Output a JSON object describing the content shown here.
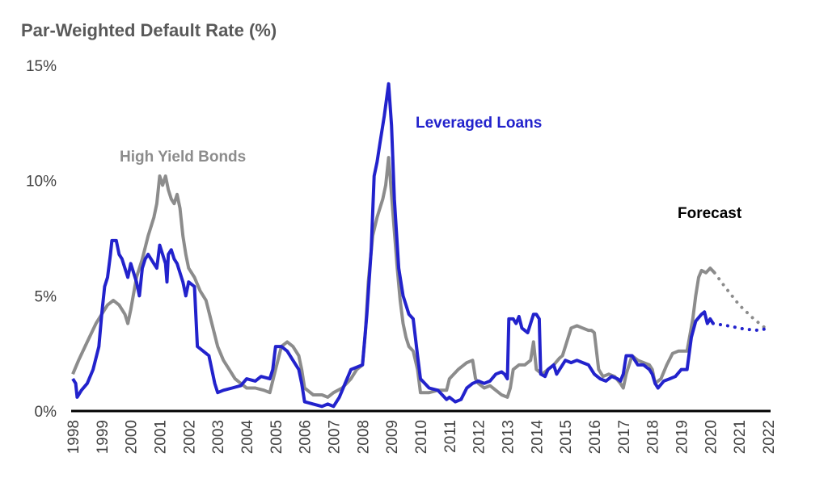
{
  "chart_data": {
    "type": "line",
    "title": "Par-Weighted Default Rate (%)",
    "xlabel": "",
    "ylabel": "",
    "xlim": [
      1998,
      2022
    ],
    "ylim": [
      0,
      15
    ],
    "x_ticks": [
      "1998",
      "1999",
      "2000",
      "2001",
      "2002",
      "2003",
      "2004",
      "2005",
      "2006",
      "2007",
      "2008",
      "2009",
      "2010",
      "2011",
      "2012",
      "2013",
      "2014",
      "2015",
      "2016",
      "2017",
      "2018",
      "2019",
      "2020",
      "2021",
      "2022"
    ],
    "y_ticks": [
      "0%",
      "5%",
      "10%",
      "15%"
    ],
    "y_tick_values": [
      0,
      5,
      10,
      15
    ],
    "annotations": {
      "forecast": "Forecast"
    },
    "series": [
      {
        "name": "High Yield Bonds",
        "color": "#8c8c8c",
        "style": "solid",
        "points": [
          [
            1998.0,
            1.6
          ],
          [
            1998.2,
            2.2
          ],
          [
            1998.5,
            3.0
          ],
          [
            1998.8,
            3.8
          ],
          [
            1999.0,
            4.2
          ],
          [
            1999.2,
            4.6
          ],
          [
            1999.4,
            4.8
          ],
          [
            1999.6,
            4.6
          ],
          [
            1999.8,
            4.2
          ],
          [
            1999.9,
            3.8
          ],
          [
            2000.0,
            4.4
          ],
          [
            2000.2,
            5.8
          ],
          [
            2000.4,
            6.6
          ],
          [
            2000.6,
            7.6
          ],
          [
            2000.8,
            8.4
          ],
          [
            2000.9,
            9.0
          ],
          [
            2001.0,
            10.2
          ],
          [
            2001.1,
            9.8
          ],
          [
            2001.2,
            10.2
          ],
          [
            2001.3,
            9.6
          ],
          [
            2001.4,
            9.2
          ],
          [
            2001.5,
            9.0
          ],
          [
            2001.6,
            9.4
          ],
          [
            2001.7,
            8.8
          ],
          [
            2001.8,
            7.6
          ],
          [
            2001.9,
            6.8
          ],
          [
            2002.0,
            6.2
          ],
          [
            2002.2,
            5.8
          ],
          [
            2002.4,
            5.2
          ],
          [
            2002.6,
            4.8
          ],
          [
            2002.8,
            3.8
          ],
          [
            2003.0,
            2.8
          ],
          [
            2003.2,
            2.2
          ],
          [
            2003.4,
            1.8
          ],
          [
            2003.6,
            1.4
          ],
          [
            2003.8,
            1.2
          ],
          [
            2004.0,
            1.0
          ],
          [
            2004.3,
            1.0
          ],
          [
            2004.6,
            0.9
          ],
          [
            2004.8,
            0.8
          ],
          [
            2005.0,
            1.8
          ],
          [
            2005.2,
            2.8
          ],
          [
            2005.4,
            3.0
          ],
          [
            2005.6,
            2.8
          ],
          [
            2005.8,
            2.4
          ],
          [
            2005.9,
            1.8
          ],
          [
            2006.0,
            1.0
          ],
          [
            2006.3,
            0.7
          ],
          [
            2006.6,
            0.7
          ],
          [
            2006.8,
            0.6
          ],
          [
            2007.0,
            0.8
          ],
          [
            2007.3,
            1.0
          ],
          [
            2007.6,
            1.4
          ],
          [
            2007.8,
            1.8
          ],
          [
            2008.0,
            2.0
          ],
          [
            2008.1,
            3.4
          ],
          [
            2008.2,
            5.6
          ],
          [
            2008.35,
            7.6
          ],
          [
            2008.5,
            8.4
          ],
          [
            2008.6,
            8.8
          ],
          [
            2008.7,
            9.2
          ],
          [
            2008.8,
            9.8
          ],
          [
            2008.9,
            11.0
          ],
          [
            2009.0,
            9.4
          ],
          [
            2009.1,
            7.8
          ],
          [
            2009.2,
            6.2
          ],
          [
            2009.3,
            4.8
          ],
          [
            2009.4,
            3.8
          ],
          [
            2009.5,
            3.2
          ],
          [
            2009.6,
            2.8
          ],
          [
            2009.75,
            2.6
          ],
          [
            2009.9,
            1.8
          ],
          [
            2010.0,
            0.8
          ],
          [
            2010.3,
            0.8
          ],
          [
            2010.6,
            0.9
          ],
          [
            2010.9,
            0.9
          ],
          [
            2011.0,
            1.4
          ],
          [
            2011.3,
            1.8
          ],
          [
            2011.6,
            2.1
          ],
          [
            2011.8,
            2.2
          ],
          [
            2011.9,
            1.4
          ],
          [
            2012.0,
            1.2
          ],
          [
            2012.2,
            1.0
          ],
          [
            2012.4,
            1.1
          ],
          [
            2012.6,
            0.9
          ],
          [
            2012.8,
            0.7
          ],
          [
            2013.0,
            0.6
          ],
          [
            2013.1,
            1.0
          ],
          [
            2013.2,
            1.8
          ],
          [
            2013.4,
            2.0
          ],
          [
            2013.6,
            2.0
          ],
          [
            2013.8,
            2.2
          ],
          [
            2013.9,
            3.0
          ],
          [
            2014.0,
            1.8
          ],
          [
            2014.2,
            1.6
          ],
          [
            2014.4,
            1.8
          ],
          [
            2014.6,
            2.0
          ],
          [
            2014.8,
            2.3
          ],
          [
            2014.9,
            2.4
          ],
          [
            2015.0,
            2.8
          ],
          [
            2015.2,
            3.6
          ],
          [
            2015.4,
            3.7
          ],
          [
            2015.6,
            3.6
          ],
          [
            2015.8,
            3.5
          ],
          [
            2015.9,
            3.5
          ],
          [
            2016.0,
            3.4
          ],
          [
            2016.15,
            1.8
          ],
          [
            2016.3,
            1.5
          ],
          [
            2016.5,
            1.6
          ],
          [
            2016.7,
            1.5
          ],
          [
            2016.9,
            1.2
          ],
          [
            2017.0,
            1.0
          ],
          [
            2017.1,
            1.6
          ],
          [
            2017.3,
            2.4
          ],
          [
            2017.5,
            2.2
          ],
          [
            2017.7,
            2.1
          ],
          [
            2017.9,
            2.0
          ],
          [
            2018.0,
            1.8
          ],
          [
            2018.1,
            1.2
          ],
          [
            2018.3,
            1.4
          ],
          [
            2018.5,
            2.0
          ],
          [
            2018.7,
            2.5
          ],
          [
            2018.9,
            2.6
          ],
          [
            2019.0,
            2.6
          ],
          [
            2019.2,
            2.6
          ],
          [
            2019.4,
            4.0
          ],
          [
            2019.5,
            5.0
          ],
          [
            2019.6,
            5.8
          ],
          [
            2019.7,
            6.1
          ],
          [
            2019.85,
            6.0
          ],
          [
            2020.0,
            6.2
          ],
          [
            2020.15,
            6.0
          ]
        ]
      },
      {
        "name": "Leveraged Loans",
        "color": "#2222cc",
        "style": "solid",
        "points": [
          [
            1998.0,
            1.4
          ],
          [
            1998.1,
            1.2
          ],
          [
            1998.15,
            0.6
          ],
          [
            1998.3,
            0.9
          ],
          [
            1998.5,
            1.2
          ],
          [
            1998.7,
            1.8
          ],
          [
            1998.9,
            2.8
          ],
          [
            1999.0,
            4.2
          ],
          [
            1999.1,
            5.4
          ],
          [
            1999.2,
            5.8
          ],
          [
            1999.3,
            6.8
          ],
          [
            1999.35,
            7.4
          ],
          [
            1999.5,
            7.4
          ],
          [
            1999.6,
            6.8
          ],
          [
            1999.7,
            6.6
          ],
          [
            1999.8,
            6.2
          ],
          [
            1999.9,
            5.8
          ],
          [
            2000.0,
            6.4
          ],
          [
            2000.2,
            5.6
          ],
          [
            2000.3,
            5.0
          ],
          [
            2000.4,
            6.2
          ],
          [
            2000.5,
            6.6
          ],
          [
            2000.6,
            6.8
          ],
          [
            2000.8,
            6.4
          ],
          [
            2000.9,
            6.2
          ],
          [
            2001.0,
            7.2
          ],
          [
            2001.1,
            6.8
          ],
          [
            2001.2,
            6.4
          ],
          [
            2001.25,
            5.6
          ],
          [
            2001.3,
            6.8
          ],
          [
            2001.4,
            7.0
          ],
          [
            2001.5,
            6.6
          ],
          [
            2001.6,
            6.4
          ],
          [
            2001.7,
            6.0
          ],
          [
            2001.8,
            5.6
          ],
          [
            2001.9,
            5.0
          ],
          [
            2002.0,
            5.6
          ],
          [
            2002.2,
            5.4
          ],
          [
            2002.3,
            2.8
          ],
          [
            2002.5,
            2.6
          ],
          [
            2002.7,
            2.4
          ],
          [
            2002.8,
            1.8
          ],
          [
            2002.9,
            1.2
          ],
          [
            2003.0,
            0.8
          ],
          [
            2003.2,
            0.9
          ],
          [
            2003.5,
            1.0
          ],
          [
            2003.8,
            1.1
          ],
          [
            2004.0,
            1.4
          ],
          [
            2004.3,
            1.3
          ],
          [
            2004.5,
            1.5
          ],
          [
            2004.8,
            1.4
          ],
          [
            2004.9,
            1.8
          ],
          [
            2005.0,
            2.8
          ],
          [
            2005.2,
            2.8
          ],
          [
            2005.4,
            2.6
          ],
          [
            2005.6,
            2.2
          ],
          [
            2005.8,
            1.8
          ],
          [
            2005.9,
            1.2
          ],
          [
            2006.0,
            0.4
          ],
          [
            2006.3,
            0.3
          ],
          [
            2006.6,
            0.2
          ],
          [
            2006.8,
            0.3
          ],
          [
            2007.0,
            0.2
          ],
          [
            2007.2,
            0.6
          ],
          [
            2007.4,
            1.2
          ],
          [
            2007.6,
            1.8
          ],
          [
            2007.8,
            1.9
          ],
          [
            2008.0,
            2.0
          ],
          [
            2008.15,
            4.2
          ],
          [
            2008.3,
            7.0
          ],
          [
            2008.4,
            10.2
          ],
          [
            2008.5,
            10.8
          ],
          [
            2008.6,
            11.6
          ],
          [
            2008.75,
            12.8
          ],
          [
            2008.9,
            14.2
          ],
          [
            2009.0,
            12.4
          ],
          [
            2009.1,
            9.2
          ],
          [
            2009.25,
            6.2
          ],
          [
            2009.4,
            5.0
          ],
          [
            2009.5,
            4.6
          ],
          [
            2009.6,
            4.2
          ],
          [
            2009.75,
            4.0
          ],
          [
            2009.9,
            2.4
          ],
          [
            2010.0,
            1.4
          ],
          [
            2010.3,
            1.0
          ],
          [
            2010.6,
            0.9
          ],
          [
            2010.9,
            0.5
          ],
          [
            2011.0,
            0.6
          ],
          [
            2011.2,
            0.4
          ],
          [
            2011.4,
            0.5
          ],
          [
            2011.6,
            1.0
          ],
          [
            2011.8,
            1.2
          ],
          [
            2012.0,
            1.3
          ],
          [
            2012.2,
            1.2
          ],
          [
            2012.4,
            1.3
          ],
          [
            2012.6,
            1.6
          ],
          [
            2012.8,
            1.7
          ],
          [
            2012.9,
            1.6
          ],
          [
            2013.0,
            1.4
          ],
          [
            2013.05,
            4.0
          ],
          [
            2013.2,
            4.0
          ],
          [
            2013.3,
            3.8
          ],
          [
            2013.4,
            4.1
          ],
          [
            2013.5,
            3.6
          ],
          [
            2013.7,
            3.4
          ],
          [
            2013.8,
            3.8
          ],
          [
            2013.9,
            4.2
          ],
          [
            2014.0,
            4.2
          ],
          [
            2014.1,
            4.0
          ],
          [
            2014.15,
            1.6
          ],
          [
            2014.3,
            1.5
          ],
          [
            2014.4,
            1.8
          ],
          [
            2014.6,
            2.0
          ],
          [
            2014.7,
            1.6
          ],
          [
            2014.9,
            2.0
          ],
          [
            2015.0,
            2.2
          ],
          [
            2015.2,
            2.1
          ],
          [
            2015.4,
            2.2
          ],
          [
            2015.6,
            2.1
          ],
          [
            2015.8,
            2.0
          ],
          [
            2016.0,
            1.6
          ],
          [
            2016.2,
            1.4
          ],
          [
            2016.4,
            1.3
          ],
          [
            2016.6,
            1.5
          ],
          [
            2016.8,
            1.4
          ],
          [
            2016.9,
            1.3
          ],
          [
            2017.0,
            1.6
          ],
          [
            2017.1,
            2.4
          ],
          [
            2017.3,
            2.4
          ],
          [
            2017.5,
            2.0
          ],
          [
            2017.7,
            2.0
          ],
          [
            2017.9,
            1.8
          ],
          [
            2018.0,
            1.6
          ],
          [
            2018.1,
            1.2
          ],
          [
            2018.2,
            1.0
          ],
          [
            2018.4,
            1.3
          ],
          [
            2018.6,
            1.4
          ],
          [
            2018.8,
            1.5
          ],
          [
            2019.0,
            1.8
          ],
          [
            2019.2,
            1.8
          ],
          [
            2019.35,
            3.2
          ],
          [
            2019.5,
            3.9
          ],
          [
            2019.7,
            4.2
          ],
          [
            2019.8,
            4.3
          ],
          [
            2019.9,
            3.8
          ],
          [
            2020.0,
            4.0
          ],
          [
            2020.1,
            3.8
          ]
        ]
      },
      {
        "name": "",
        "color": "#8c8c8c",
        "style": "dotted",
        "points": [
          [
            2020.15,
            6.0
          ],
          [
            2020.5,
            5.4
          ],
          [
            2021.0,
            4.6
          ],
          [
            2021.5,
            4.0
          ],
          [
            2021.8,
            3.7
          ],
          [
            2022.0,
            3.5
          ]
        ]
      },
      {
        "name": "",
        "color": "#2222cc",
        "style": "dotted",
        "points": [
          [
            2020.1,
            3.8
          ],
          [
            2020.6,
            3.7
          ],
          [
            2021.2,
            3.55
          ],
          [
            2021.7,
            3.5
          ],
          [
            2022.0,
            3.6
          ]
        ]
      }
    ]
  }
}
